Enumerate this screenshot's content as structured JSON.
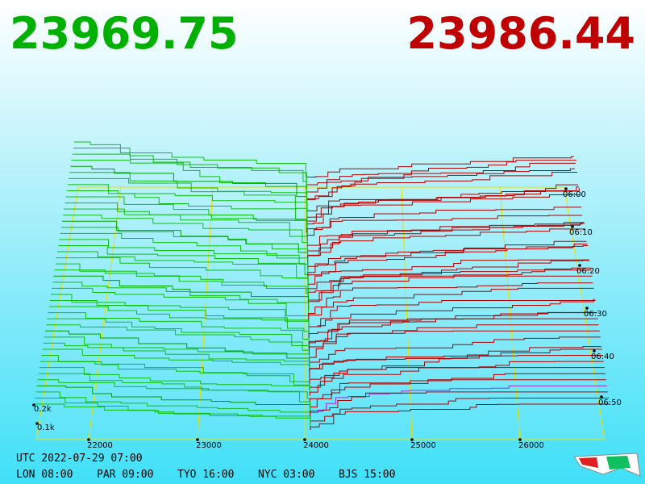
{
  "bid": "23969.75",
  "ask": "23986.44",
  "price_axis": [
    "22000",
    "23000",
    "24000",
    "25000",
    "26000"
  ],
  "time_axis": [
    "06:00",
    "06:10",
    "06:20",
    "06:30",
    "06:40",
    "06:50"
  ],
  "depth_axis": [
    "0.2k",
    "0.1k"
  ],
  "utc": "UTC 2022-07-29 07:00",
  "cities": [
    "LON 08:00",
    "PAR 09:00",
    "TYO 16:00",
    "NYC 03:00",
    "BJS 15:00"
  ]
}
